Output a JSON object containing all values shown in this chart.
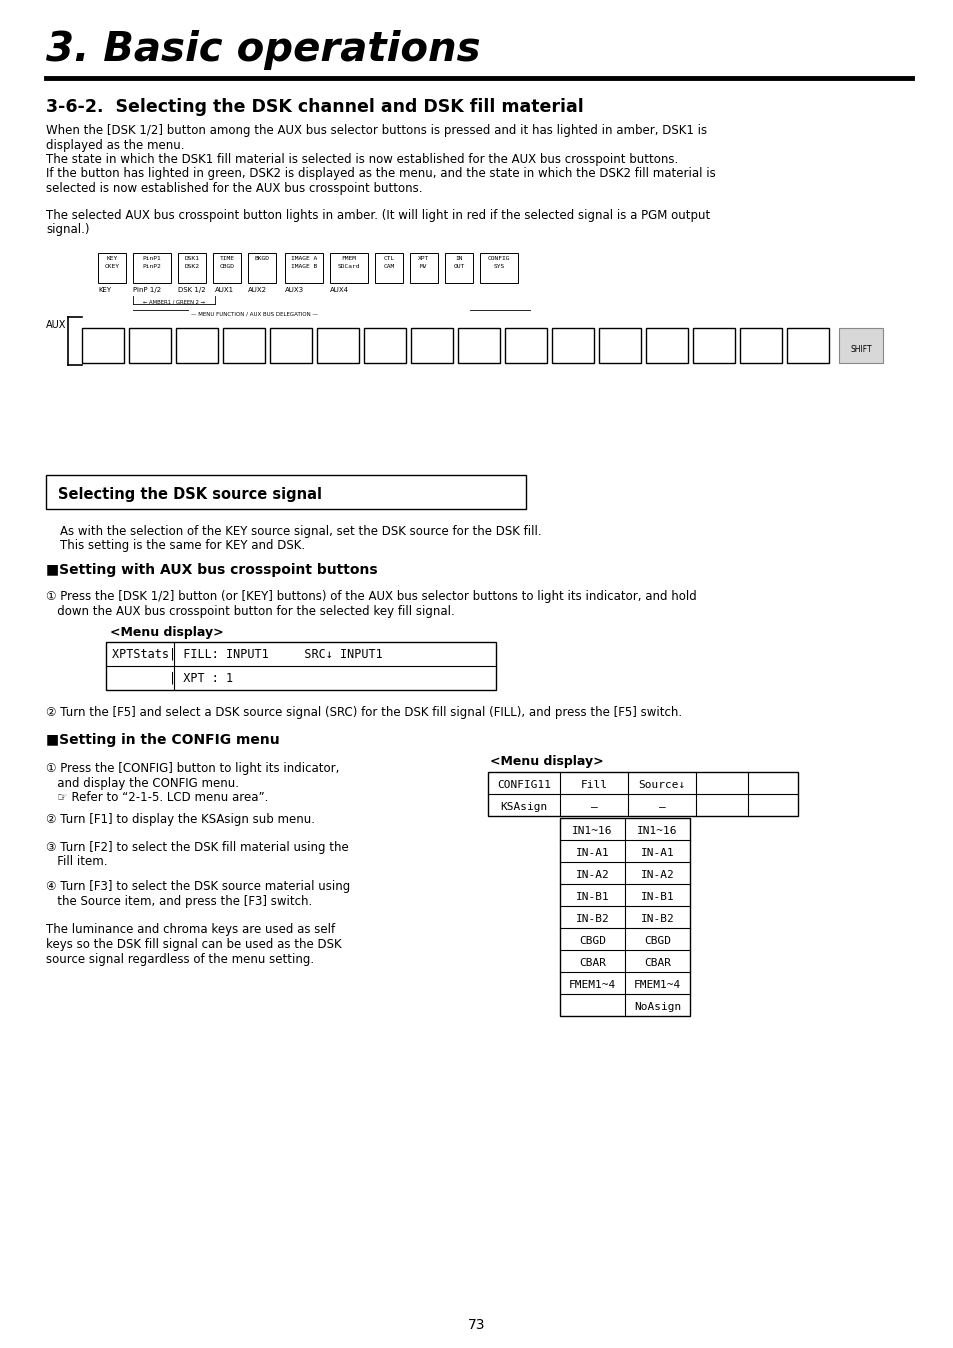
{
  "title": "3. Basic operations",
  "section_title": "3-6-2.  Selecting the DSK channel and DSK fill material",
  "body_text_1a": "When the [DSK 1/2] button among the AUX bus selector buttons is pressed and it has lighted in amber, DSK1 is",
  "body_text_1b": "displayed as the menu.",
  "body_text_1c": "The state in which the DSK1 fill material is selected is now established for the AUX bus crosspoint buttons.",
  "body_text_1d": "If the button has lighted in green, DSK2 is displayed as the menu, and the state in which the DSK2 fill material is",
  "body_text_1e": "selected is now established for the AUX bus crosspoint buttons.",
  "body_text_2a": "The selected AUX bus crosspoint button lights in amber. (It will light in red if the selected signal is a PGM output",
  "body_text_2b": "signal.)",
  "section_box": "Selecting the DSK source signal",
  "section_body_1a": "As with the selection of the KEY source signal, set the DSK source for the DSK fill.",
  "section_body_1b": "This setting is the same for KEY and DSK.",
  "subsection_1": "■Setting with AUX bus crosspoint buttons",
  "step1_line1": "① Press the [DSK 1/2] button (or [KEY] buttons) of the AUX bus selector buttons to light its indicator, and hold",
  "step1_line2": "   down the AUX bus crosspoint button for the selected key fill signal.",
  "menu_display_label": "<Menu display>",
  "menu_line1": "XPTStats| FILL: INPUT1     SRC↓ INPUT1",
  "menu_line2": "        | XPT : 1",
  "step2_text": "② Turn the [F5] and select a DSK source signal (SRC) for the DSK fill signal (FILL), and press the [F5] switch.",
  "subsection_2": "■Setting in the CONFIG menu",
  "menu_display_label2": "<Menu display>",
  "config_menu_table": [
    [
      "CONFIG11",
      "Fill    ",
      "Source↓",
      "        ",
      "        "
    ],
    [
      "KSAsign ",
      "   —    ",
      "   —    ",
      "        ",
      "        "
    ]
  ],
  "submenu_table": [
    [
      "IN1~16 ",
      "IN1~16 "
    ],
    [
      " IN-A1 ",
      " IN-A1 "
    ],
    [
      " IN-A2 ",
      " IN-A2 "
    ],
    [
      " IN-B1 ",
      " IN-B1 "
    ],
    [
      " IN-B2 ",
      " IN-B2 "
    ],
    [
      "  CBGD ",
      "  CBGD "
    ],
    [
      "  CBAR ",
      "  CBAR "
    ],
    [
      "FMEM1~4",
      "FMEM1~4"
    ],
    [
      "       ",
      "NoAsign"
    ]
  ],
  "left_step1_l1": "① Press the [CONFIG] button to light its indicator,",
  "left_step1_l2": "   and display the CONFIG menu.",
  "left_step1_l3": "   ☞ Refer to “2-1-5. LCD menu area”.",
  "left_step2": "② Turn [F1] to display the KSAsign sub menu.",
  "left_step3_l1": "③ Turn [F2] to select the DSK fill material using the",
  "left_step3_l2": "   Fill item.",
  "left_step4_l1": "④ Turn [F3] to select the DSK source material using",
  "left_step4_l2": "   the Source item, and press the [F3] switch.",
  "left_note_l1": "The luminance and chroma keys are used as self",
  "left_note_l2": "keys so the DSK fill signal can be used as the DSK",
  "left_note_l3": "source signal regardless of the menu setting.",
  "page_number": "73",
  "bg_color": "#ffffff",
  "text_color": "#000000"
}
